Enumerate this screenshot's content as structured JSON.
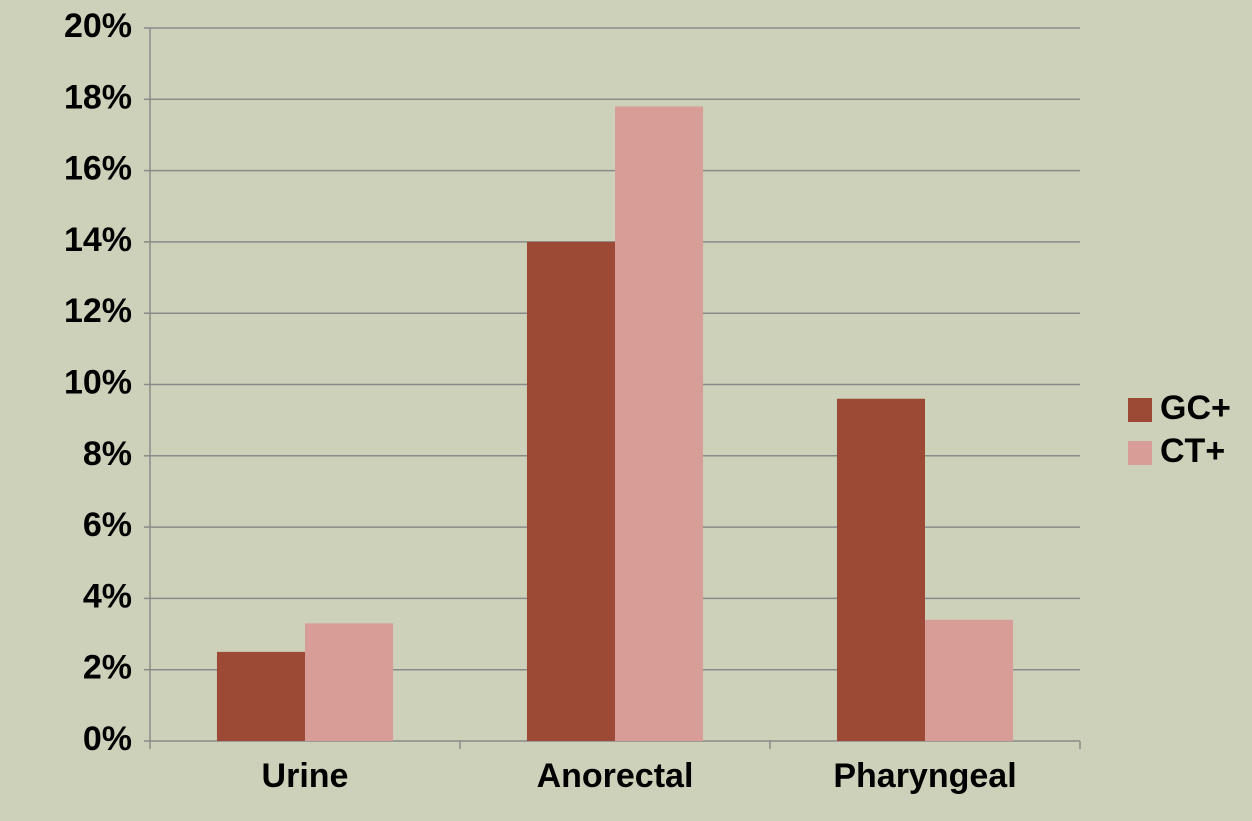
{
  "chart_data": {
    "type": "bar",
    "categories": [
      "Urine",
      "Anorectal",
      "Pharyngeal"
    ],
    "series": [
      {
        "name": "GC+",
        "color": "#9c4a35",
        "values": [
          2.5,
          14.0,
          9.6
        ]
      },
      {
        "name": "CT+",
        "color": "#d79d96",
        "values": [
          3.3,
          17.8,
          3.4
        ]
      }
    ],
    "ylim": [
      0,
      20
    ],
    "yticks": [
      {
        "value": 0,
        "label": "0%"
      },
      {
        "value": 2,
        "label": "2%"
      },
      {
        "value": 4,
        "label": "4%"
      },
      {
        "value": 6,
        "label": "6%"
      },
      {
        "value": 8,
        "label": "8%"
      },
      {
        "value": 10,
        "label": "10%"
      },
      {
        "value": 12,
        "label": "12%"
      },
      {
        "value": 14,
        "label": "14%"
      },
      {
        "value": 16,
        "label": "16%"
      },
      {
        "value": 18,
        "label": "18%"
      },
      {
        "value": 20,
        "label": "20%"
      }
    ],
    "grid": true,
    "legend": "right"
  }
}
